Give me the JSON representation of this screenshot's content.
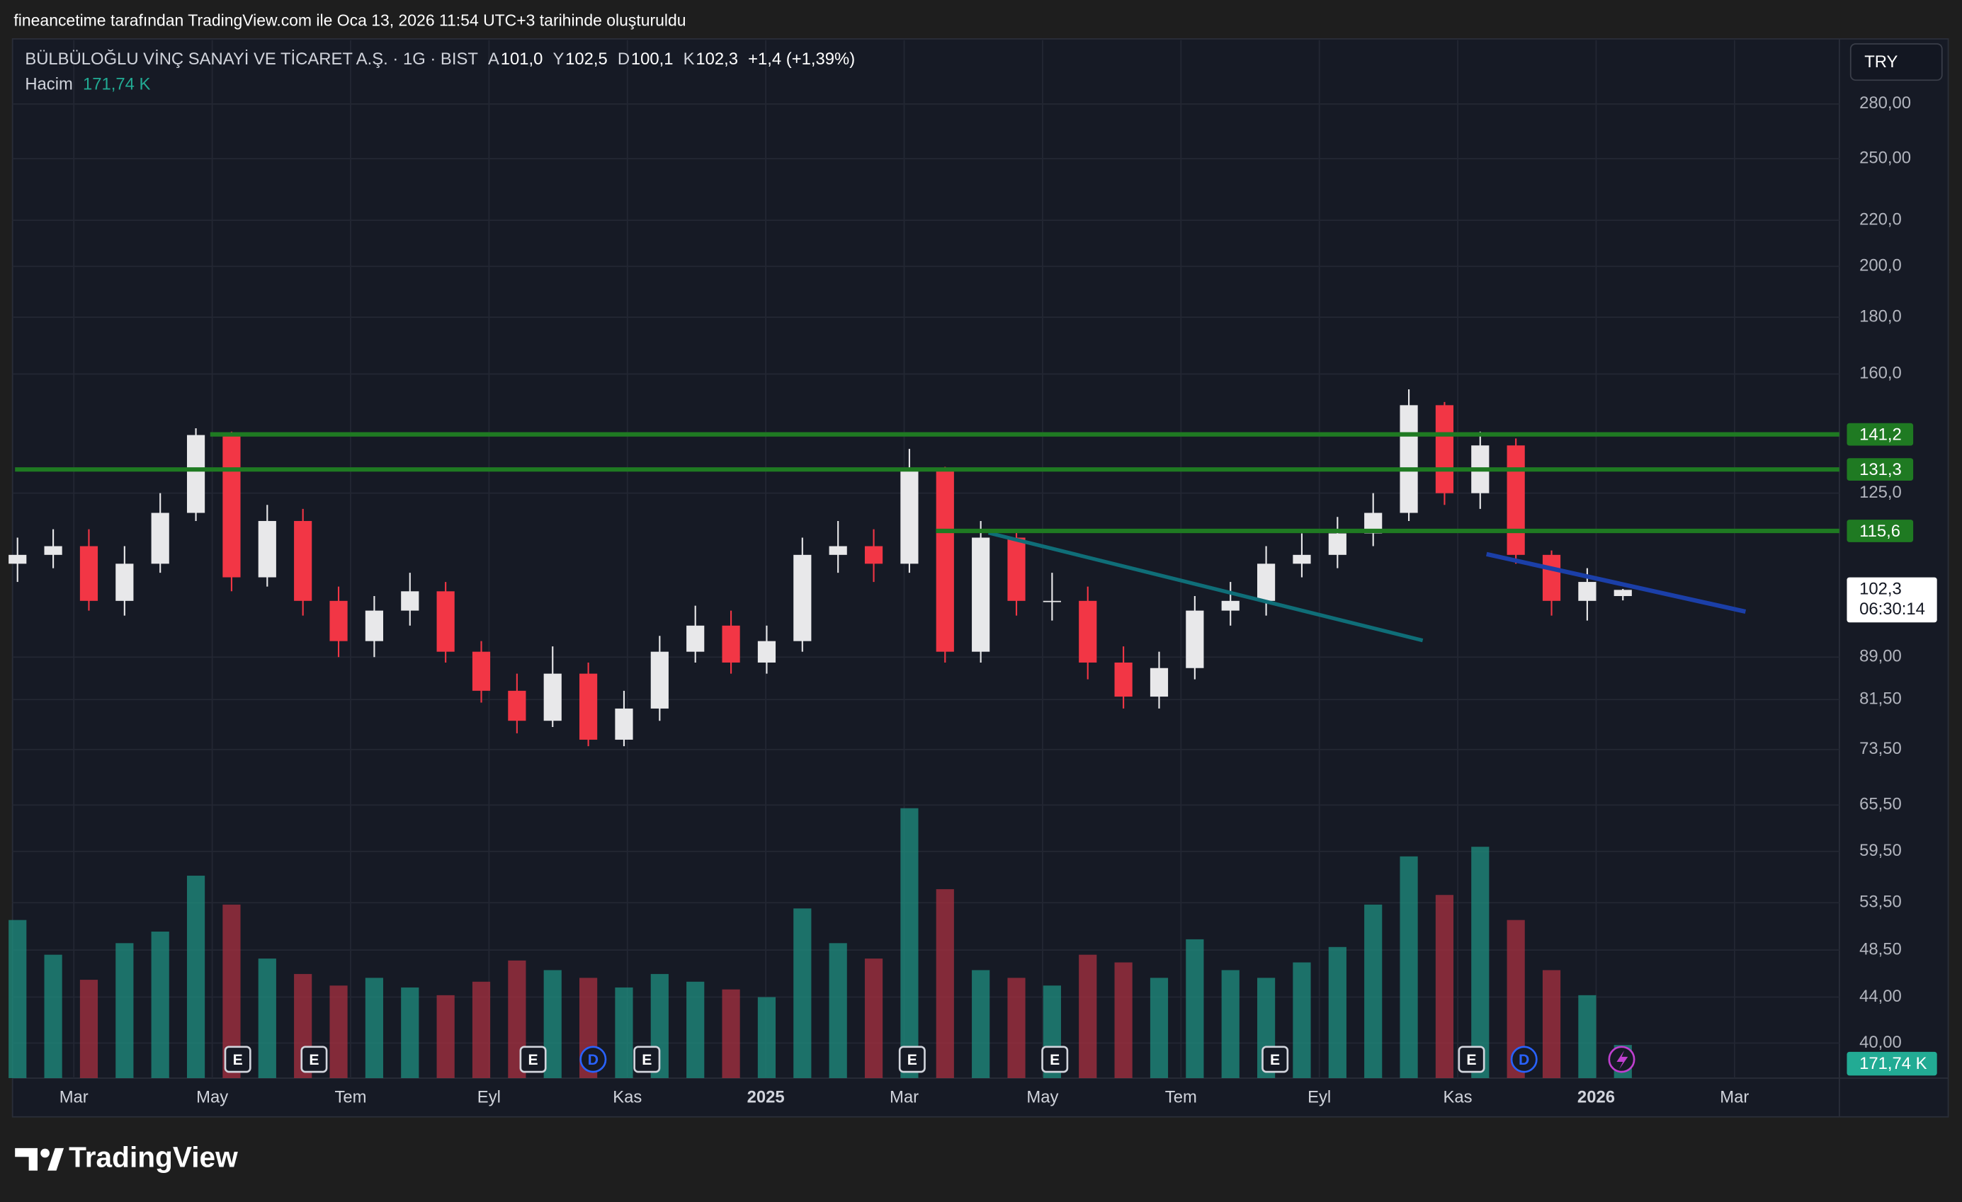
{
  "header": "fineancetime tarafından TradingView.com ile Oca 13, 2026 11:54 UTC+3 tarihinde oluşturuldu",
  "logo": "TradingView",
  "chart_data": {
    "type": "candlestick",
    "title": "BÜLBÜLOĞLU VİNÇ SANAYİ VE TİCARET A.Ş. · 1G · BIST",
    "ohlc_legend": [
      {
        "key": "A",
        "text": "101,0"
      },
      {
        "key": "Y",
        "text": "102,5"
      },
      {
        "key": "D",
        "text": "100,1"
      },
      {
        "key": "K",
        "text": "102,3"
      }
    ],
    "change": "+1,4 (+1,39%)",
    "volume_label": "Hacim",
    "volume_value_label": "171,74 K",
    "currency": "TRY",
    "x_labels": [
      "Mar",
      "May",
      "Tem",
      "Eyl",
      "Kas",
      "2025",
      "Mar",
      "May",
      "Tem",
      "Eyl",
      "Kas",
      "2026",
      "Mar"
    ],
    "open": [
      108,
      110,
      112,
      100,
      108,
      120,
      141,
      105,
      118,
      100,
      92,
      98,
      102,
      90,
      83,
      78,
      86,
      75,
      80,
      90,
      95,
      88,
      92,
      110,
      112,
      108,
      131,
      90,
      114,
      100,
      100,
      88,
      82,
      87,
      98,
      100,
      108,
      110,
      115,
      120,
      150,
      125,
      138,
      110,
      100,
      101.0
    ],
    "high": [
      114,
      116,
      116,
      112,
      125,
      143,
      142,
      122,
      121,
      103,
      101,
      106,
      104,
      92,
      86,
      91,
      88,
      83,
      93,
      99,
      98,
      95,
      114,
      118,
      116,
      137,
      132,
      118,
      116,
      106,
      103,
      91,
      90,
      101,
      104,
      112,
      115,
      119,
      125,
      155,
      151,
      142,
      140,
      111,
      107,
      102.5
    ],
    "low": [
      104,
      107,
      98,
      97,
      106,
      118,
      102,
      103,
      97,
      89,
      89,
      95,
      88,
      81,
      76,
      77,
      74,
      74,
      78,
      88,
      86,
      86,
      90,
      106,
      104,
      106,
      88,
      88,
      97,
      96,
      85,
      80,
      80,
      85,
      95,
      97,
      105,
      107,
      112,
      118,
      122,
      121,
      108,
      97,
      96,
      100.1
    ],
    "close": [
      110,
      112,
      100,
      108,
      120,
      141,
      105,
      118,
      100,
      92,
      98,
      102,
      90,
      83,
      78,
      86,
      75,
      80,
      90,
      95,
      88,
      92,
      110,
      112,
      108,
      131,
      90,
      114,
      100,
      100,
      88,
      82,
      87,
      98,
      100,
      108,
      110,
      115,
      120,
      150,
      125,
      138,
      110,
      100,
      104,
      102.3
    ],
    "volume": [
      820000,
      640000,
      510000,
      700000,
      760000,
      1050000,
      900000,
      620000,
      540000,
      480000,
      520000,
      470000,
      430000,
      500000,
      610000,
      560000,
      520000,
      470000,
      540000,
      500000,
      460000,
      420000,
      880000,
      700000,
      620000,
      1400000,
      980000,
      560000,
      520000,
      480000,
      640000,
      600000,
      520000,
      720000,
      560000,
      520000,
      600000,
      680000,
      900000,
      1150000,
      950000,
      1200000,
      820000,
      560000,
      430000,
      171740
    ],
    "colors": {
      "up": "#e8e8ea",
      "down": "#f23645",
      "volume_up": "#1f8f80",
      "volume_down": "#a83040"
    },
    "log_scale": true,
    "grid": true,
    "ylim": [
      37.2,
      319.6
    ],
    "yticks": [
      {
        "value": 280,
        "label": "280,00"
      },
      {
        "value": 250,
        "label": "250,00"
      },
      {
        "value": 220,
        "label": "220,0"
      },
      {
        "value": 200,
        "label": "200,0"
      },
      {
        "value": 180,
        "label": "180,0"
      },
      {
        "value": 160,
        "label": "160,0"
      },
      {
        "value": 125,
        "label": "125,0"
      },
      {
        "value": 89,
        "label": "89,00"
      },
      {
        "value": 81.5,
        "label": "81,50"
      },
      {
        "value": 73.5,
        "label": "73,50"
      },
      {
        "value": 65.5,
        "label": "65,50"
      },
      {
        "value": 59.5,
        "label": "59,50"
      },
      {
        "value": 53.5,
        "label": "53,50"
      },
      {
        "value": 48.5,
        "label": "48,50"
      },
      {
        "value": 44,
        "label": "44,00"
      },
      {
        "value": 40,
        "label": "40,00"
      }
    ],
    "levels": [
      {
        "value": 141.2,
        "label": "141,2"
      },
      {
        "value": 131.3,
        "label": "131,3"
      },
      {
        "value": 115.6,
        "label": "115,6"
      }
    ],
    "level_color": "#1f7a22",
    "last_price": {
      "value": 102.3,
      "label": "102,3"
    },
    "countdown": "06:30:14",
    "events": [
      "E",
      "E",
      "E",
      "D",
      "E",
      "E",
      "E",
      "E",
      "E",
      "D"
    ]
  }
}
